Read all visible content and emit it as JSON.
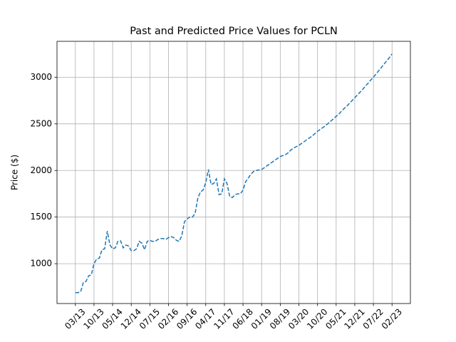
{
  "chart_data": {
    "type": "line",
    "title": "Past and Predicted Price Values for PCLN",
    "ylabel": "Price ($)",
    "color": "#1f77b4",
    "grid": true,
    "x": [
      "03/13",
      "04/13",
      "05/13",
      "06/13",
      "07/13",
      "08/13",
      "09/13",
      "10/13",
      "11/13",
      "12/13",
      "01/14",
      "02/14",
      "03/14",
      "04/14",
      "05/14",
      "06/14",
      "07/14",
      "08/14",
      "09/14",
      "10/14",
      "11/14",
      "12/14",
      "01/15",
      "02/15",
      "03/15",
      "04/15",
      "05/15",
      "06/15",
      "07/15",
      "08/15",
      "09/15",
      "10/15",
      "11/15",
      "12/15",
      "01/16",
      "02/16",
      "03/16",
      "04/16",
      "05/16",
      "06/16",
      "07/16",
      "08/16",
      "09/16",
      "10/16",
      "11/16",
      "12/16",
      "01/17",
      "02/17",
      "03/17",
      "04/17",
      "05/17",
      "06/17",
      "07/17",
      "08/17",
      "09/17",
      "10/17",
      "11/17",
      "12/17",
      "01/18",
      "02/18",
      "03/18",
      "04/18",
      "05/18",
      "06/18",
      "07/18",
      "08/18",
      "09/18",
      "10/18",
      "11/18",
      "12/18",
      "01/19",
      "02/19",
      "03/19",
      "04/19",
      "05/19",
      "06/19",
      "07/19",
      "08/19",
      "09/19",
      "10/19",
      "11/19",
      "12/19",
      "01/20",
      "02/20",
      "03/20",
      "04/20",
      "05/20",
      "06/20",
      "07/20",
      "08/20",
      "09/20",
      "10/20",
      "11/20",
      "12/20",
      "01/21",
      "02/21",
      "03/21",
      "04/21",
      "05/21",
      "06/21",
      "07/21",
      "08/21",
      "09/21",
      "10/21",
      "11/21",
      "12/21",
      "01/22",
      "02/22",
      "03/22",
      "04/22",
      "05/22",
      "06/22",
      "07/22",
      "08/22",
      "09/22",
      "10/22",
      "11/22",
      "12/22",
      "01/23",
      "02/23"
    ],
    "values": [
      690,
      690,
      700,
      800,
      810,
      870,
      880,
      1000,
      1050,
      1060,
      1150,
      1160,
      1350,
      1200,
      1160,
      1170,
      1240,
      1245,
      1170,
      1200,
      1190,
      1140,
      1140,
      1160,
      1240,
      1220,
      1150,
      1240,
      1250,
      1240,
      1240,
      1260,
      1270,
      1270,
      1260,
      1280,
      1290,
      1280,
      1250,
      1240,
      1300,
      1450,
      1480,
      1500,
      1500,
      1540,
      1700,
      1770,
      1790,
      1870,
      2010,
      1850,
      1860,
      1910,
      1740,
      1750,
      1910,
      1860,
      1720,
      1710,
      1740,
      1750,
      1750,
      1790,
      1880,
      1920,
      1960,
      1990,
      2000,
      2005,
      2010,
      2030,
      2050,
      2070,
      2090,
      2110,
      2130,
      2150,
      2160,
      2170,
      2190,
      2220,
      2240,
      2255,
      2270,
      2290,
      2310,
      2330,
      2350,
      2370,
      2395,
      2420,
      2440,
      2460,
      2480,
      2505,
      2530,
      2555,
      2580,
      2605,
      2635,
      2665,
      2690,
      2720,
      2750,
      2780,
      2810,
      2840,
      2870,
      2905,
      2935,
      2970,
      3000,
      3035,
      3070,
      3105,
      3140,
      3175,
      3210,
      3250
    ],
    "xticks": [
      "03/13",
      "10/13",
      "05/14",
      "12/14",
      "07/15",
      "02/16",
      "09/16",
      "04/17",
      "11/17",
      "06/18",
      "01/19",
      "08/19",
      "03/20",
      "10/20",
      "05/21",
      "12/21",
      "07/22",
      "02/23"
    ],
    "ylim": [
      573,
      3385
    ],
    "yticks": [
      1000,
      1500,
      2000,
      2500,
      3000
    ]
  }
}
